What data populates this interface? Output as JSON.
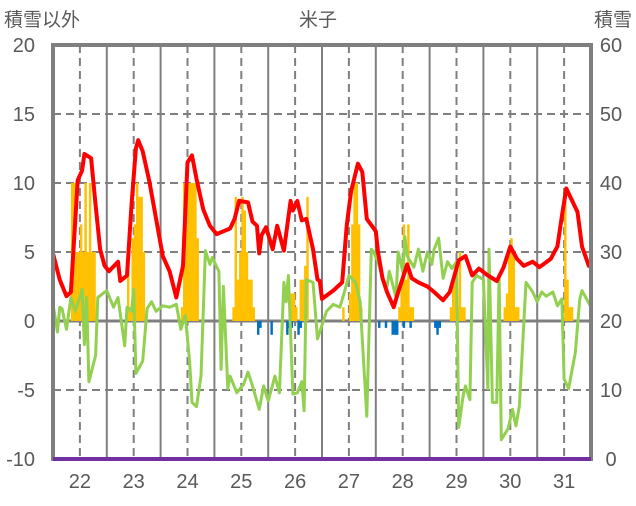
{
  "chart_data": {
    "type": "bar+line",
    "title": "米子",
    "left_axis_label": "積雪以外",
    "right_axis_label": "積雪",
    "left_ylim": [
      -10,
      20
    ],
    "left_ticks": [
      "20",
      "15",
      "10",
      "5",
      "0",
      "-5",
      "-10"
    ],
    "left_tick_values": [
      20,
      15,
      10,
      5,
      0,
      -5,
      -10
    ],
    "right_ylim": [
      0,
      60
    ],
    "right_ticks": [
      "60",
      "50",
      "40",
      "30",
      "20",
      "10",
      "0"
    ],
    "right_tick_values": [
      60,
      50,
      40,
      30,
      20,
      10,
      0
    ],
    "x_unit": "hours",
    "xlim": [
      0,
      240
    ],
    "x_ticks": [
      "22",
      "23",
      "24",
      "25",
      "26",
      "27",
      "28",
      "29",
      "30",
      "31"
    ],
    "grid": true,
    "colors": {
      "red": "#ff0000",
      "green": "#92d050",
      "orange": "#ffc000",
      "blue": "#0070c0",
      "purple": "#7030a0",
      "frame": "#7f7f7f"
    },
    "red_line": {
      "hours": [
        0,
        3,
        6,
        8,
        11,
        13,
        14,
        17,
        19,
        21,
        23,
        25,
        29,
        30,
        33,
        35,
        37,
        38,
        40,
        43,
        46,
        49,
        52,
        55,
        58,
        60,
        62,
        64,
        67,
        70,
        73,
        76,
        79,
        81,
        83,
        87,
        89,
        91,
        92,
        93,
        95,
        98,
        100,
        103,
        106,
        107,
        109,
        111,
        113,
        116,
        118,
        119,
        120,
        125,
        129,
        131,
        133,
        136,
        138,
        140,
        144,
        145,
        147,
        149,
        152,
        154,
        156,
        158,
        160,
        163,
        167,
        170,
        174,
        177,
        181,
        184,
        187,
        190,
        194,
        198,
        201,
        204,
        207,
        210,
        214,
        217,
        222,
        225,
        227,
        229,
        234,
        236,
        239,
        240
      ],
      "values": [
        4.9,
        3.0,
        1.8,
        2.1,
        10.2,
        10.9,
        12.1,
        11.8,
        8.4,
        5.2,
        4.0,
        3.6,
        4.3,
        2.9,
        3.3,
        8.4,
        12.5,
        13.1,
        12.3,
        10.1,
        7.4,
        4.7,
        3.6,
        1.7,
        4.0,
        11.5,
        12.0,
        10.3,
        8.1,
        6.9,
        6.3,
        6.5,
        6.7,
        7.4,
        8.7,
        8.6,
        7.2,
        6.9,
        4.9,
        6.2,
        6.8,
        5.2,
        6.9,
        5.1,
        8.7,
        8.0,
        8.7,
        7.3,
        7.4,
        5.2,
        3.0,
        2.9,
        1.6,
        2.2,
        2.8,
        6.9,
        9.4,
        11.4,
        10.8,
        7.4,
        6.5,
        5.0,
        3.1,
        2.1,
        1.0,
        2.1,
        3.1,
        4.1,
        3.1,
        2.8,
        2.5,
        2.1,
        1.5,
        2.1,
        4.4,
        4.7,
        3.3,
        3.8,
        3.3,
        2.9,
        3.9,
        5.4,
        4.5,
        4.0,
        4.3,
        3.9,
        4.5,
        5.4,
        7.6,
        9.6,
        7.9,
        5.4,
        4.0,
        4.3
      ]
    },
    "green_line": {
      "hours": [
        0,
        2,
        3,
        4,
        6,
        8,
        10,
        13,
        14,
        15,
        16,
        19,
        20,
        24,
        27,
        29,
        32,
        33,
        35,
        36,
        37,
        40,
        42,
        44,
        46,
        49,
        52,
        55,
        57,
        59,
        61,
        62,
        64,
        66,
        68,
        70,
        71,
        74,
        75,
        76,
        78,
        79,
        82,
        85,
        87,
        89,
        92,
        94,
        96,
        99,
        101,
        103,
        104,
        105,
        107,
        109,
        111,
        112,
        113,
        116,
        118,
        122,
        125,
        128,
        130,
        132,
        135,
        137,
        140,
        142,
        143,
        145,
        147,
        149,
        150,
        153,
        154,
        156,
        157,
        158,
        161,
        163,
        165,
        167,
        169,
        170,
        172,
        174,
        176,
        178,
        180,
        181,
        183,
        184,
        186,
        187,
        189,
        192,
        194,
        194.5,
        196,
        198,
        199,
        200,
        203,
        205,
        206.5,
        208,
        211,
        214,
        216,
        218,
        220,
        223,
        225,
        227,
        228,
        230,
        233,
        235,
        236,
        238,
        240
      ],
      "values": [
        1.2,
        -0.8,
        1.0,
        0.9,
        -0.6,
        1.7,
        0.7,
        2.3,
        -1.7,
        1.7,
        -4.4,
        -2.5,
        1.7,
        2.2,
        1.0,
        1.7,
        -1.8,
        1.0,
        0.7,
        2.3,
        -3.8,
        -2.9,
        0.9,
        1.4,
        0.7,
        1.1,
        1.0,
        1.2,
        -0.6,
        0.4,
        -3.0,
        -5.9,
        -6.2,
        -4.0,
        5.1,
        4.1,
        4.6,
        3.6,
        -3.5,
        2.5,
        -4.9,
        -4.0,
        -5.2,
        -4.6,
        -3.7,
        -4.7,
        -6.4,
        -4.7,
        -5.8,
        -4.0,
        -5.2,
        2.8,
        1.4,
        3.3,
        -5.3,
        -5.2,
        -4.4,
        -6.5,
        3.0,
        2.8,
        -1.3,
        0.7,
        1.2,
        1.0,
        2.1,
        3.3,
        2.8,
        1.4,
        -6.9,
        5.2,
        5.0,
        4.3,
        3.1,
        2.5,
        3.6,
        1.7,
        5.0,
        3.6,
        6.1,
        4.7,
        3.9,
        5.2,
        3.6,
        5.0,
        4.1,
        5.2,
        6.0,
        3.1,
        4.3,
        3.8,
        4.3,
        -7.7,
        -5.4,
        -4.7,
        -5.7,
        2.8,
        3.3,
        3.0,
        -4.9,
        5.2,
        -5.9,
        -5.9,
        3.3,
        -8.6,
        -7.8,
        -6.4,
        -7.6,
        -6.2,
        2.8,
        2.1,
        1.4,
        2.1,
        1.8,
        2.1,
        1.1,
        1.6,
        -4.2,
        -4.9,
        -2.3,
        1.6,
        2.2,
        1.6,
        1.0
      ]
    },
    "orange_bars": {
      "hours": [
        8,
        9,
        10,
        11,
        12,
        13,
        14,
        15,
        16,
        17,
        18,
        33,
        34,
        35,
        36,
        37,
        38,
        39,
        40,
        57,
        58,
        59,
        60,
        61,
        62,
        63,
        64,
        80,
        81,
        82,
        83,
        84,
        85,
        86,
        87,
        88,
        89,
        106,
        107,
        108,
        110,
        111,
        112,
        113,
        129,
        132,
        133,
        134,
        135,
        136,
        137,
        154,
        155,
        156,
        157,
        158,
        159,
        160,
        177,
        178,
        179,
        180,
        181,
        182,
        183,
        201,
        202,
        203,
        204,
        205,
        206,
        207,
        228,
        229,
        230,
        231
      ],
      "values": [
        10,
        10,
        5,
        5,
        7,
        5,
        10,
        5,
        10,
        5,
        5,
        4,
        1,
        6,
        7,
        10,
        9,
        9,
        5,
        1,
        10,
        10,
        10,
        10,
        10,
        10,
        6,
        1,
        9,
        3,
        5,
        9,
        8,
        5,
        3,
        3,
        1,
        2,
        2,
        1,
        3,
        3,
        4,
        9,
        1,
        2,
        7,
        10,
        10,
        7,
        1,
        1,
        3,
        7,
        3,
        7,
        1,
        1,
        1,
        3,
        3,
        1,
        5,
        1,
        1,
        1,
        2,
        5,
        6,
        5,
        1,
        1,
        9,
        3,
        1,
        1
      ]
    },
    "blue_bars": {
      "hours": [
        91,
        92,
        97,
        104,
        105,
        106,
        109,
        110,
        145,
        148,
        151,
        152,
        153,
        156,
        159,
        170,
        171,
        172
      ],
      "values": [
        -1,
        -0.5,
        -1,
        -1,
        -0.5,
        -0.5,
        -1,
        -0.5,
        -0.5,
        -0.5,
        -1,
        -1,
        -1,
        -0.5,
        -0.5,
        -0.5,
        -1,
        -0.5
      ]
    },
    "purple_line": {
      "axis": "right",
      "hours": [
        0,
        240
      ],
      "values": [
        0,
        0
      ]
    }
  }
}
